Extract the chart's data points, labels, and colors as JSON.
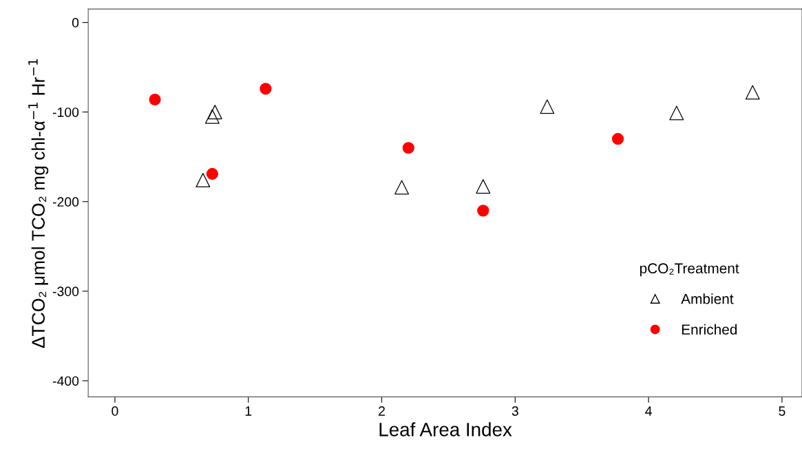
{
  "chart_data": {
    "type": "scatter",
    "xlabel": "Leaf Area Index",
    "ylabel": "ΔTCO₂ μmol TCO₂ mg chl-α$^{−1}$ Hr$^{−1}$",
    "legend_title": "pCO₂Treatment",
    "xlim": [
      -0.2,
      5.15
    ],
    "ylim": [
      -418,
      15
    ],
    "xticks": [
      0,
      1,
      2,
      3,
      4,
      5
    ],
    "yticks": [
      0,
      -100,
      -200,
      -300,
      -400
    ],
    "grid": false,
    "legend": "bottom right",
    "series": [
      {
        "name": "Ambient",
        "color": "#000000",
        "marker": "triangle",
        "x": [
          0.66,
          0.73,
          0.75,
          2.15,
          2.76,
          3.24,
          4.21,
          4.78
        ],
        "values": [
          -176,
          -105,
          -100,
          -184,
          -183,
          -94,
          -101,
          -78
        ]
      },
      {
        "name": "Enriched",
        "color": "#ff0000",
        "marker": "circle",
        "x": [
          0.3,
          0.73,
          1.13,
          2.2,
          2.76,
          3.77
        ],
        "values": [
          -86,
          -169,
          -74,
          -140,
          -210,
          -130
        ]
      }
    ]
  }
}
